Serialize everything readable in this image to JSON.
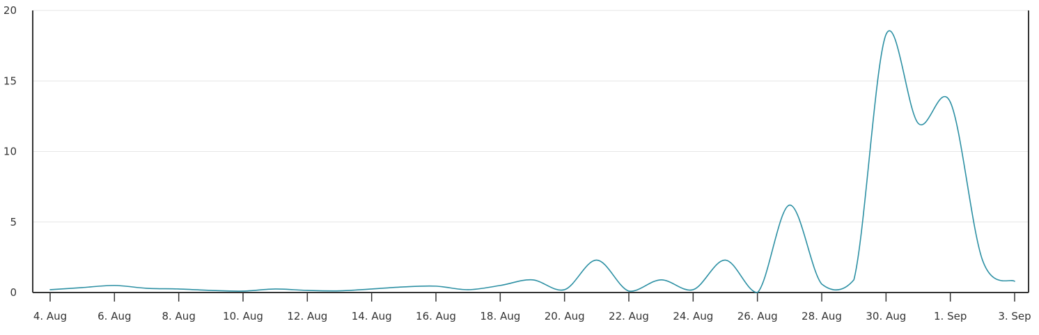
{
  "chart_data": {
    "type": "line",
    "title": "",
    "xlabel": "",
    "ylabel": "",
    "x": [
      "4. Aug",
      "5. Aug",
      "6. Aug",
      "7. Aug",
      "8. Aug",
      "9. Aug",
      "10. Aug",
      "11. Aug",
      "12. Aug",
      "13. Aug",
      "14. Aug",
      "15. Aug",
      "16. Aug",
      "17. Aug",
      "18. Aug",
      "19. Aug",
      "20. Aug",
      "21. Aug",
      "22. Aug",
      "23. Aug",
      "24. Aug",
      "25. Aug",
      "26. Aug",
      "27. Aug",
      "28. Aug",
      "29. Aug",
      "30. Aug",
      "31. Aug",
      "1. Sep",
      "2. Sep",
      "3. Sep"
    ],
    "x_tick_labels": [
      "4. Aug",
      "6. Aug",
      "8. Aug",
      "10. Aug",
      "12. Aug",
      "14. Aug",
      "16. Aug",
      "18. Aug",
      "20. Aug",
      "22. Aug",
      "24. Aug",
      "26. Aug",
      "28. Aug",
      "30. Aug",
      "1. Sep",
      "3. Sep"
    ],
    "series": [
      {
        "color": "#2b8fa3",
        "values": [
          0.2,
          0.35,
          0.5,
          0.3,
          0.25,
          0.15,
          0.1,
          0.25,
          0.15,
          0.12,
          0.25,
          0.4,
          0.45,
          0.2,
          0.5,
          0.9,
          0.2,
          2.3,
          0.1,
          0.9,
          0.2,
          2.3,
          0.0,
          6.2,
          0.6,
          0.9,
          18.3,
          12.0,
          13.5,
          2.3,
          0.8
        ]
      }
    ],
    "ylim": [
      0,
      20
    ],
    "y_ticks": [
      0,
      5,
      10,
      15,
      20
    ],
    "grid": true,
    "legend": "none"
  }
}
